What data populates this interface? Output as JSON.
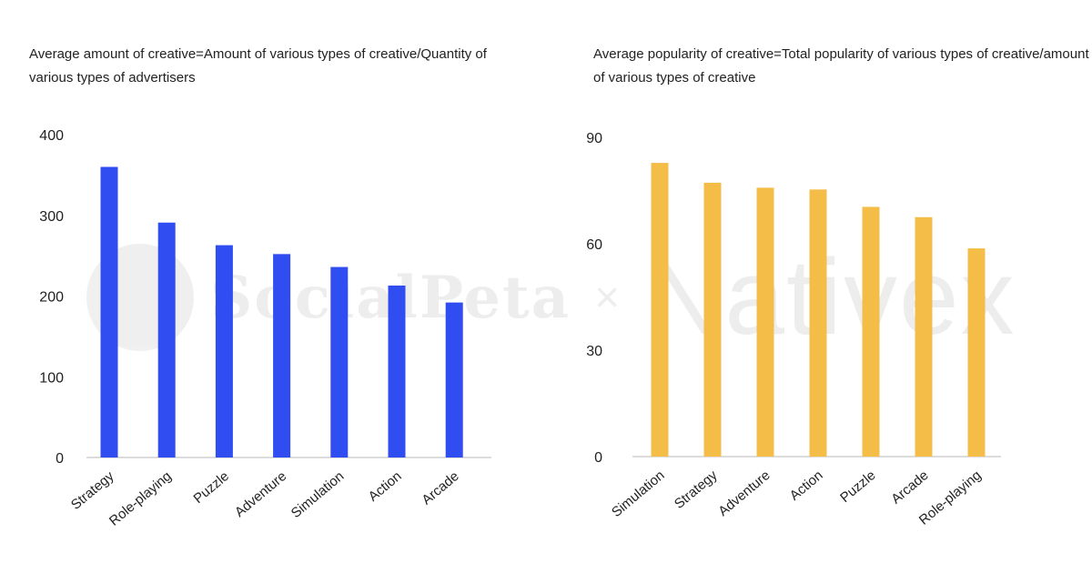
{
  "watermark": {
    "left_text": "SocialPeta",
    "separator": "×",
    "right_text": "Nativex"
  },
  "chart_data": [
    {
      "type": "bar",
      "title": "Average amount of creative=Amount of various types of creative/Quantity of various types of advertisers",
      "categories": [
        "Strategy",
        "Role-playing",
        "Puzzle",
        "Adventure",
        "Simulation",
        "Action",
        "Arcade"
      ],
      "values": [
        360,
        291,
        263,
        252,
        236,
        213,
        192
      ],
      "ylim": [
        0,
        400
      ],
      "yticks": [
        0,
        100,
        200,
        300,
        400
      ],
      "color": "#2f4df0",
      "grid": false
    },
    {
      "type": "bar",
      "title": "Average popularity of creative=Total popularity of various types of creative/amount of various types of creative",
      "categories": [
        "Simulation",
        "Strategy",
        "Adventure",
        "Action",
        "Puzzle",
        "Arcade",
        "Role-playing"
      ],
      "values": [
        82.8,
        77.2,
        75.8,
        75.3,
        70.4,
        67.5,
        58.7
      ],
      "ylim": [
        0,
        90
      ],
      "yticks": [
        0,
        30,
        60,
        90
      ],
      "color": "#f4bd48",
      "grid": false
    }
  ]
}
